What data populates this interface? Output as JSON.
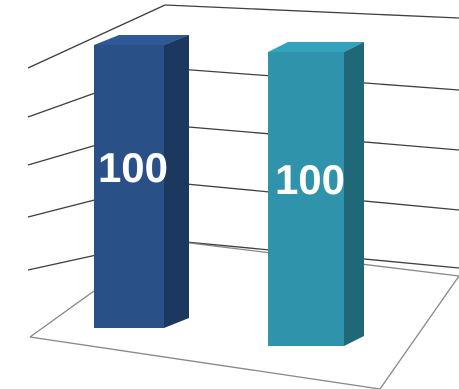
{
  "chart_data": {
    "type": "bar",
    "style": "3d-column",
    "categories": [
      "",
      ""
    ],
    "values": [
      100,
      100
    ],
    "data_labels": [
      "100",
      "100"
    ],
    "colors": [
      "#2a5088",
      "#2e93ab"
    ],
    "title": "",
    "xlabel": "",
    "ylabel": "",
    "grid": true,
    "legend": "none"
  }
}
